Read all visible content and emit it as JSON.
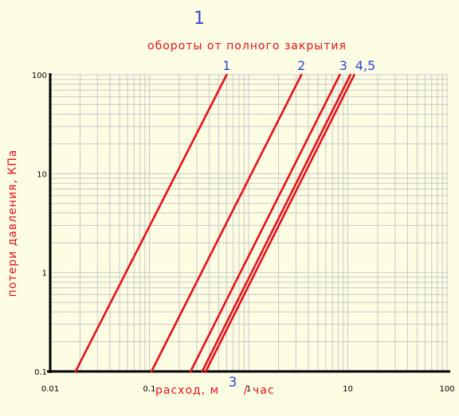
{
  "colors": {
    "background": "#fdfde4",
    "grid": "#c8c8c8",
    "axis": "#000000",
    "series": "#e8101a",
    "curve_labels": "#3044d8",
    "title_text": "#e8101a"
  },
  "header": {
    "number": "1",
    "subtitle": "обороты от полного закрытия"
  },
  "chart_data": {
    "type": "line",
    "x_scale": "log",
    "y_scale": "log",
    "xlim": [
      0.01,
      100
    ],
    "ylim": [
      0.1,
      100
    ],
    "grid": true,
    "xlabel": "расход, м",
    "xlabel_superscript": "3",
    "xlabel_suffix": "/ час",
    "ylabel": "потери давления, КПа",
    "x_tick_labels": [
      {
        "value": 0.01,
        "label": "0.01"
      },
      {
        "value": 0.1,
        "label": "0.1"
      },
      {
        "value": 1,
        "label": "1"
      },
      {
        "value": 10,
        "label": "10"
      },
      {
        "value": 100,
        "label": "100"
      }
    ],
    "y_tick_labels": [
      {
        "value": 0.1,
        "label": "0.1"
      },
      {
        "value": 1,
        "label": "1"
      },
      {
        "value": 10,
        "label": "10"
      },
      {
        "value": 100,
        "label": "100"
      }
    ],
    "series": [
      {
        "points": [
          [
            0.018,
            0.1
          ],
          [
            0.6,
            100
          ]
        ]
      },
      {
        "points": [
          [
            0.105,
            0.1
          ],
          [
            3.4,
            100
          ]
        ]
      },
      {
        "points": [
          [
            0.26,
            0.1
          ],
          [
            8.3,
            100
          ]
        ]
      },
      {
        "points": [
          [
            0.34,
            0.1
          ],
          [
            10.6,
            100
          ]
        ]
      },
      {
        "points": [
          [
            0.37,
            0.1
          ],
          [
            11.6,
            100
          ]
        ]
      }
    ],
    "curve_labels": [
      {
        "text": "1",
        "x": 0.6
      },
      {
        "text": "2",
        "x": 3.4
      },
      {
        "text": "3",
        "x": 9.0
      },
      {
        "text": "4,5",
        "x": 15.0
      }
    ]
  }
}
